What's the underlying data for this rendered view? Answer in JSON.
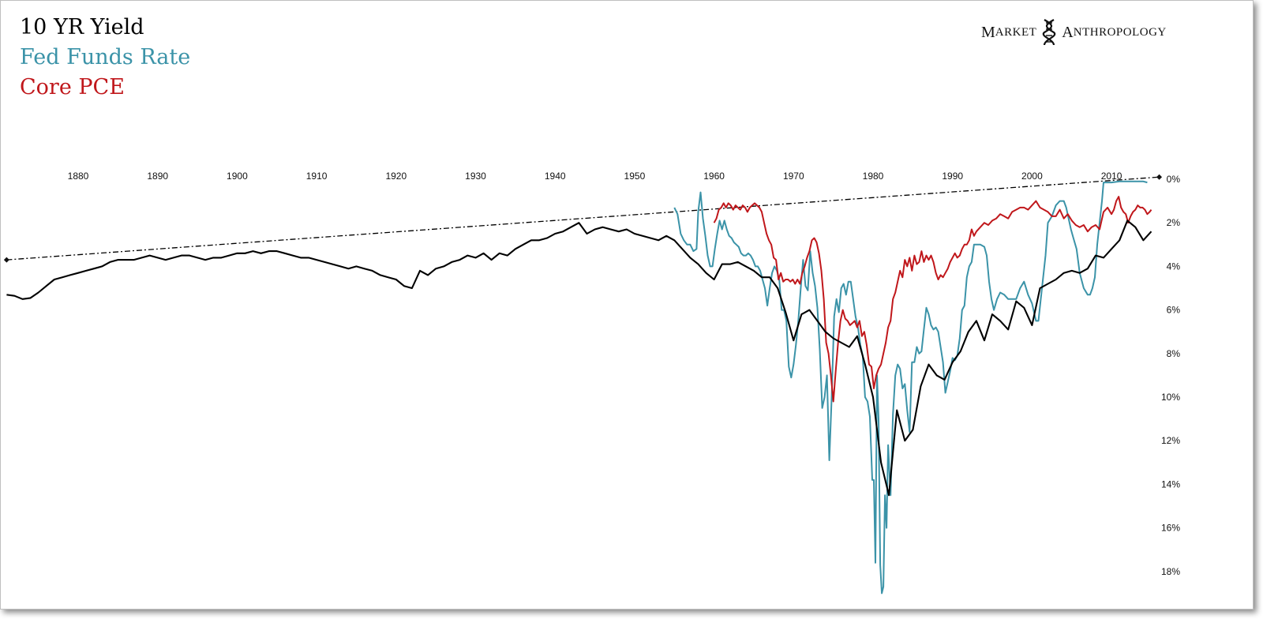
{
  "brand": {
    "word1_initial": "M",
    "word1_rest": "ARKET",
    "word2_initial": "A",
    "word2_rest": "NTHROPOLOGY",
    "logo_icon": "dna-helix-icon"
  },
  "chart_data": {
    "type": "line",
    "title": "",
    "xlabel": "",
    "ylabel": "",
    "xlim": [
      1871,
      2016
    ],
    "ylim": [
      0,
      19
    ],
    "y_inverted": true,
    "grid": false,
    "x_ticks": [
      "1880",
      "1890",
      "1900",
      "1910",
      "1920",
      "1930",
      "1940",
      "1950",
      "1960",
      "1970",
      "1980",
      "1990",
      "2000",
      "2010"
    ],
    "y_ticks": [
      "0%",
      "2%",
      "4%",
      "6%",
      "8%",
      "10%",
      "12%",
      "14%",
      "16%",
      "18%"
    ],
    "legend_position": "top-left",
    "series": [
      {
        "name": "10 YR Yield",
        "color": "#000000",
        "x": [
          1871,
          1872,
          1873,
          1874,
          1875,
          1876,
          1877,
          1878,
          1879,
          1880,
          1881,
          1882,
          1883,
          1884,
          1885,
          1886,
          1887,
          1888,
          1889,
          1890,
          1891,
          1892,
          1893,
          1894,
          1895,
          1896,
          1897,
          1898,
          1899,
          1900,
          1901,
          1902,
          1903,
          1904,
          1905,
          1906,
          1907,
          1908,
          1909,
          1910,
          1911,
          1912,
          1913,
          1914,
          1915,
          1916,
          1917,
          1918,
          1919,
          1920,
          1921,
          1922,
          1923,
          1924,
          1925,
          1926,
          1927,
          1928,
          1929,
          1930,
          1931,
          1932,
          1933,
          1934,
          1935,
          1936,
          1937,
          1938,
          1939,
          1940,
          1941,
          1942,
          1943,
          1944,
          1945,
          1946,
          1947,
          1948,
          1949,
          1950,
          1951,
          1952,
          1953,
          1954,
          1955,
          1956,
          1957,
          1958,
          1959,
          1960,
          1961,
          1962,
          1963,
          1964,
          1965,
          1966,
          1967,
          1968,
          1969,
          1970,
          1971,
          1972,
          1973,
          1974,
          1975,
          1976,
          1977,
          1978,
          1979,
          1980,
          1981,
          1982,
          1983,
          1984,
          1985,
          1986,
          1987,
          1988,
          1989,
          1990,
          1991,
          1992,
          1993,
          1994,
          1995,
          1996,
          1997,
          1998,
          1999,
          2000,
          2001,
          2002,
          2003,
          2004,
          2005,
          2006,
          2007,
          2008,
          2009,
          2010,
          2011,
          2012,
          2013,
          2014,
          2015
        ],
        "values": [
          5.3,
          5.35,
          5.5,
          5.45,
          5.2,
          4.9,
          4.6,
          4.5,
          4.4,
          4.3,
          4.2,
          4.1,
          4.0,
          3.8,
          3.7,
          3.7,
          3.7,
          3.6,
          3.5,
          3.6,
          3.7,
          3.6,
          3.5,
          3.5,
          3.6,
          3.7,
          3.6,
          3.6,
          3.5,
          3.4,
          3.4,
          3.3,
          3.4,
          3.3,
          3.3,
          3.4,
          3.5,
          3.6,
          3.6,
          3.7,
          3.8,
          3.9,
          4.0,
          4.1,
          4.0,
          4.1,
          4.2,
          4.4,
          4.5,
          4.6,
          4.9,
          5.0,
          4.2,
          4.4,
          4.1,
          4.0,
          3.8,
          3.7,
          3.5,
          3.6,
          3.4,
          3.7,
          3.4,
          3.5,
          3.2,
          3.0,
          2.8,
          2.8,
          2.7,
          2.5,
          2.4,
          2.2,
          2.0,
          2.5,
          2.3,
          2.2,
          2.3,
          2.4,
          2.3,
          2.5,
          2.6,
          2.7,
          2.8,
          2.6,
          2.8,
          3.2,
          3.6,
          3.9,
          4.3,
          4.6,
          3.9,
          3.9,
          3.8,
          4.0,
          4.2,
          4.5,
          4.5,
          5.0,
          6.1,
          7.4,
          6.2,
          6.0,
          6.5,
          7.0,
          7.3,
          7.5,
          7.7,
          7.2,
          8.5,
          10.0,
          13.0,
          14.5,
          10.6,
          12.0,
          11.5,
          9.5,
          8.5,
          9.0,
          9.2,
          8.4,
          7.9,
          7.0,
          6.5,
          7.4,
          6.2,
          6.5,
          6.9,
          5.6,
          5.9,
          6.7,
          5.0,
          4.8,
          4.6,
          4.3,
          4.2,
          4.3,
          4.1,
          3.5,
          3.6,
          3.2,
          2.8,
          1.9,
          2.2,
          2.8,
          2.4
        ]
      },
      {
        "name": "Fed Funds Rate",
        "color": "#3b93a8",
        "x": [
          1955.0,
          1955.4,
          1955.8,
          1956.2,
          1956.6,
          1957.0,
          1957.4,
          1957.8,
          1958.0,
          1958.3,
          1958.6,
          1958.9,
          1959.2,
          1959.5,
          1959.8,
          1960.1,
          1960.4,
          1960.7,
          1961.0,
          1961.3,
          1961.6,
          1961.9,
          1962.2,
          1962.5,
          1962.8,
          1963.1,
          1963.4,
          1963.7,
          1964.0,
          1964.3,
          1964.6,
          1964.9,
          1965.2,
          1965.5,
          1965.8,
          1966.1,
          1966.4,
          1966.7,
          1967.0,
          1967.3,
          1967.6,
          1967.9,
          1968.2,
          1968.5,
          1968.8,
          1969.1,
          1969.4,
          1969.7,
          1970.0,
          1970.3,
          1970.6,
          1970.9,
          1971.2,
          1971.5,
          1971.8,
          1972.1,
          1972.4,
          1972.7,
          1973.0,
          1973.3,
          1973.6,
          1973.9,
          1974.2,
          1974.5,
          1974.8,
          1975.1,
          1975.4,
          1975.7,
          1976.0,
          1976.3,
          1976.6,
          1976.9,
          1977.2,
          1977.5,
          1977.8,
          1978.1,
          1978.4,
          1978.7,
          1979.0,
          1979.3,
          1979.6,
          1979.9,
          1980.1,
          1980.3,
          1980.5,
          1980.7,
          1980.9,
          1981.1,
          1981.3,
          1981.5,
          1981.7,
          1981.9,
          1982.2,
          1982.5,
          1982.8,
          1983.1,
          1983.4,
          1983.7,
          1984.0,
          1984.3,
          1984.6,
          1984.9,
          1985.2,
          1985.5,
          1985.8,
          1986.1,
          1986.4,
          1986.7,
          1987.0,
          1987.3,
          1987.6,
          1987.9,
          1988.2,
          1988.5,
          1988.8,
          1989.1,
          1989.4,
          1989.7,
          1990.0,
          1990.3,
          1990.6,
          1990.9,
          1991.2,
          1991.5,
          1991.8,
          1992.1,
          1992.4,
          1992.7,
          1993.0,
          1993.5,
          1994.0,
          1994.3,
          1994.6,
          1994.9,
          1995.2,
          1995.6,
          1996.0,
          1996.5,
          1997.0,
          1997.5,
          1998.0,
          1998.5,
          1999.0,
          1999.5,
          2000.0,
          2000.5,
          2000.8,
          2001.1,
          2001.4,
          2001.7,
          2002.0,
          2002.5,
          2003.0,
          2003.5,
          2004.0,
          2004.3,
          2004.6,
          2004.9,
          2005.2,
          2005.6,
          2006.0,
          2006.5,
          2007.0,
          2007.3,
          2007.6,
          2007.9,
          2008.2,
          2008.5,
          2008.8,
          2009.0,
          2009.5,
          2010.0,
          2011.0,
          2012.0,
          2013.0,
          2014.0,
          2014.5
        ],
        "values": [
          1.3,
          1.6,
          2.5,
          2.8,
          3.0,
          3.0,
          3.3,
          3.2,
          1.5,
          0.6,
          1.8,
          2.6,
          3.5,
          4.0,
          4.0,
          3.2,
          2.5,
          1.9,
          2.3,
          1.9,
          2.3,
          2.6,
          2.7,
          2.9,
          3.0,
          3.1,
          3.4,
          3.5,
          3.5,
          3.4,
          3.5,
          3.7,
          4.0,
          4.0,
          4.2,
          4.6,
          5.0,
          5.8,
          5.0,
          4.3,
          4.0,
          4.2,
          4.6,
          6.0,
          6.0,
          6.5,
          8.6,
          9.1,
          8.5,
          7.6,
          6.5,
          5.0,
          3.7,
          4.9,
          5.1,
          3.3,
          4.3,
          4.9,
          5.9,
          7.8,
          10.5,
          10.0,
          9.0,
          12.9,
          10.0,
          6.3,
          5.5,
          6.1,
          5.0,
          4.8,
          5.3,
          4.7,
          4.7,
          5.5,
          6.3,
          6.8,
          7.6,
          8.1,
          10.0,
          10.2,
          10.9,
          13.8,
          13.8,
          17.6,
          9.0,
          11.0,
          17.7,
          19.0,
          18.7,
          14.5,
          16.0,
          12.2,
          14.5,
          10.8,
          9.0,
          8.5,
          8.7,
          9.6,
          9.4,
          10.6,
          11.6,
          8.4,
          8.4,
          7.7,
          8.0,
          7.9,
          6.9,
          5.9,
          6.2,
          6.7,
          6.9,
          6.8,
          7.0,
          7.7,
          8.4,
          9.8,
          9.3,
          8.8,
          8.2,
          8.3,
          8.1,
          7.3,
          6.0,
          5.8,
          4.5,
          4.0,
          3.8,
          3.0,
          3.0,
          3.0,
          3.1,
          3.5,
          4.7,
          5.5,
          6.0,
          5.5,
          5.2,
          5.3,
          5.5,
          5.5,
          5.5,
          5.0,
          4.7,
          5.3,
          5.7,
          6.5,
          6.5,
          5.5,
          4.5,
          3.5,
          2.0,
          1.7,
          1.2,
          1.0,
          1.0,
          1.3,
          1.8,
          2.3,
          2.7,
          3.2,
          4.3,
          5.0,
          5.3,
          5.3,
          5.0,
          4.5,
          3.0,
          2.0,
          1.0,
          0.15,
          0.15,
          0.15,
          0.1,
          0.1,
          0.1,
          0.1,
          0.15
        ]
      },
      {
        "name": "Core PCE",
        "color": "#c0171b",
        "x": [
          1960.0,
          1960.3,
          1960.6,
          1960.9,
          1961.2,
          1961.5,
          1961.8,
          1962.1,
          1962.4,
          1962.7,
          1963.0,
          1963.3,
          1963.6,
          1963.9,
          1964.2,
          1964.5,
          1964.8,
          1965.1,
          1965.4,
          1965.7,
          1966.0,
          1966.3,
          1966.6,
          1966.9,
          1967.2,
          1967.5,
          1967.8,
          1968.1,
          1968.4,
          1968.7,
          1969.0,
          1969.3,
          1969.6,
          1969.9,
          1970.2,
          1970.5,
          1970.8,
          1971.1,
          1971.4,
          1971.7,
          1972.0,
          1972.3,
          1972.6,
          1972.9,
          1973.2,
          1973.5,
          1973.8,
          1974.1,
          1974.4,
          1974.7,
          1975.0,
          1975.3,
          1975.6,
          1975.9,
          1976.2,
          1976.5,
          1976.8,
          1977.1,
          1977.4,
          1977.7,
          1978.0,
          1978.3,
          1978.6,
          1978.9,
          1979.2,
          1979.5,
          1979.8,
          1980.1,
          1980.4,
          1980.7,
          1981.0,
          1981.3,
          1981.6,
          1981.9,
          1982.2,
          1982.5,
          1982.8,
          1983.1,
          1983.4,
          1983.7,
          1984.0,
          1984.3,
          1984.6,
          1984.9,
          1985.2,
          1985.5,
          1985.8,
          1986.1,
          1986.4,
          1986.7,
          1987.0,
          1987.3,
          1987.6,
          1987.9,
          1988.2,
          1988.5,
          1988.8,
          1989.1,
          1989.4,
          1989.7,
          1990.0,
          1990.3,
          1990.6,
          1990.9,
          1991.2,
          1991.5,
          1991.8,
          1992.1,
          1992.4,
          1992.7,
          1993.0,
          1993.5,
          1994.0,
          1994.5,
          1995.0,
          1995.5,
          1996.0,
          1996.5,
          1997.0,
          1997.5,
          1998.0,
          1998.5,
          1999.0,
          1999.5,
          2000.0,
          2000.5,
          2001.0,
          2001.5,
          2002.0,
          2002.5,
          2003.0,
          2003.5,
          2004.0,
          2004.5,
          2005.0,
          2005.5,
          2006.0,
          2006.5,
          2007.0,
          2007.5,
          2008.0,
          2008.5,
          2009.0,
          2009.5,
          2010.0,
          2010.3,
          2010.6,
          2010.9,
          2011.2,
          2011.5,
          2011.8,
          2012.1,
          2012.4,
          2012.7,
          2013.0,
          2013.3,
          2013.6,
          2013.9,
          2014.2,
          2014.5,
          2014.8,
          2015.0
        ],
        "values": [
          2.0,
          1.8,
          1.4,
          1.3,
          1.1,
          1.3,
          1.1,
          1.2,
          1.4,
          1.2,
          1.3,
          1.4,
          1.2,
          1.3,
          1.5,
          1.3,
          1.2,
          1.1,
          1.2,
          1.3,
          1.5,
          2.0,
          2.5,
          2.8,
          3.0,
          3.6,
          3.7,
          4.6,
          4.3,
          4.7,
          4.6,
          4.6,
          4.7,
          4.6,
          4.8,
          4.6,
          4.8,
          4.3,
          4.0,
          3.6,
          3.3,
          2.8,
          2.7,
          2.9,
          3.4,
          4.2,
          5.5,
          7.5,
          8.0,
          9.0,
          10.2,
          8.8,
          7.5,
          6.5,
          6.0,
          6.4,
          6.5,
          6.7,
          6.6,
          6.5,
          6.8,
          6.5,
          7.2,
          7.0,
          7.6,
          8.5,
          8.6,
          9.6,
          9.0,
          8.7,
          8.5,
          8.0,
          7.5,
          6.8,
          6.5,
          5.5,
          5.2,
          4.7,
          4.2,
          4.5,
          3.7,
          4.0,
          3.6,
          4.2,
          3.5,
          3.9,
          3.8,
          3.3,
          3.8,
          3.5,
          3.7,
          3.5,
          3.8,
          4.3,
          4.6,
          4.4,
          4.5,
          4.3,
          4.1,
          3.8,
          3.6,
          3.4,
          3.6,
          3.5,
          3.2,
          3.0,
          3.0,
          2.8,
          2.3,
          2.6,
          2.4,
          2.2,
          2.0,
          2.1,
          1.9,
          1.8,
          1.6,
          1.7,
          1.8,
          1.5,
          1.4,
          1.3,
          1.3,
          1.4,
          1.2,
          1.0,
          1.3,
          1.4,
          1.5,
          1.7,
          1.7,
          1.4,
          1.8,
          1.6,
          1.9,
          2.1,
          2.2,
          2.1,
          2.4,
          2.2,
          2.1,
          2.3,
          1.5,
          1.3,
          1.6,
          1.4,
          1.0,
          0.8,
          1.3,
          1.5,
          1.6,
          2.0,
          1.7,
          1.5,
          1.4,
          1.2,
          1.3,
          1.3,
          1.4,
          1.6,
          1.5,
          1.4
        ]
      }
    ],
    "trendline": {
      "style": "dash-dot",
      "color": "#000000",
      "from": [
        1871,
        3.7
      ],
      "to": [
        2016,
        -0.1
      ]
    }
  }
}
